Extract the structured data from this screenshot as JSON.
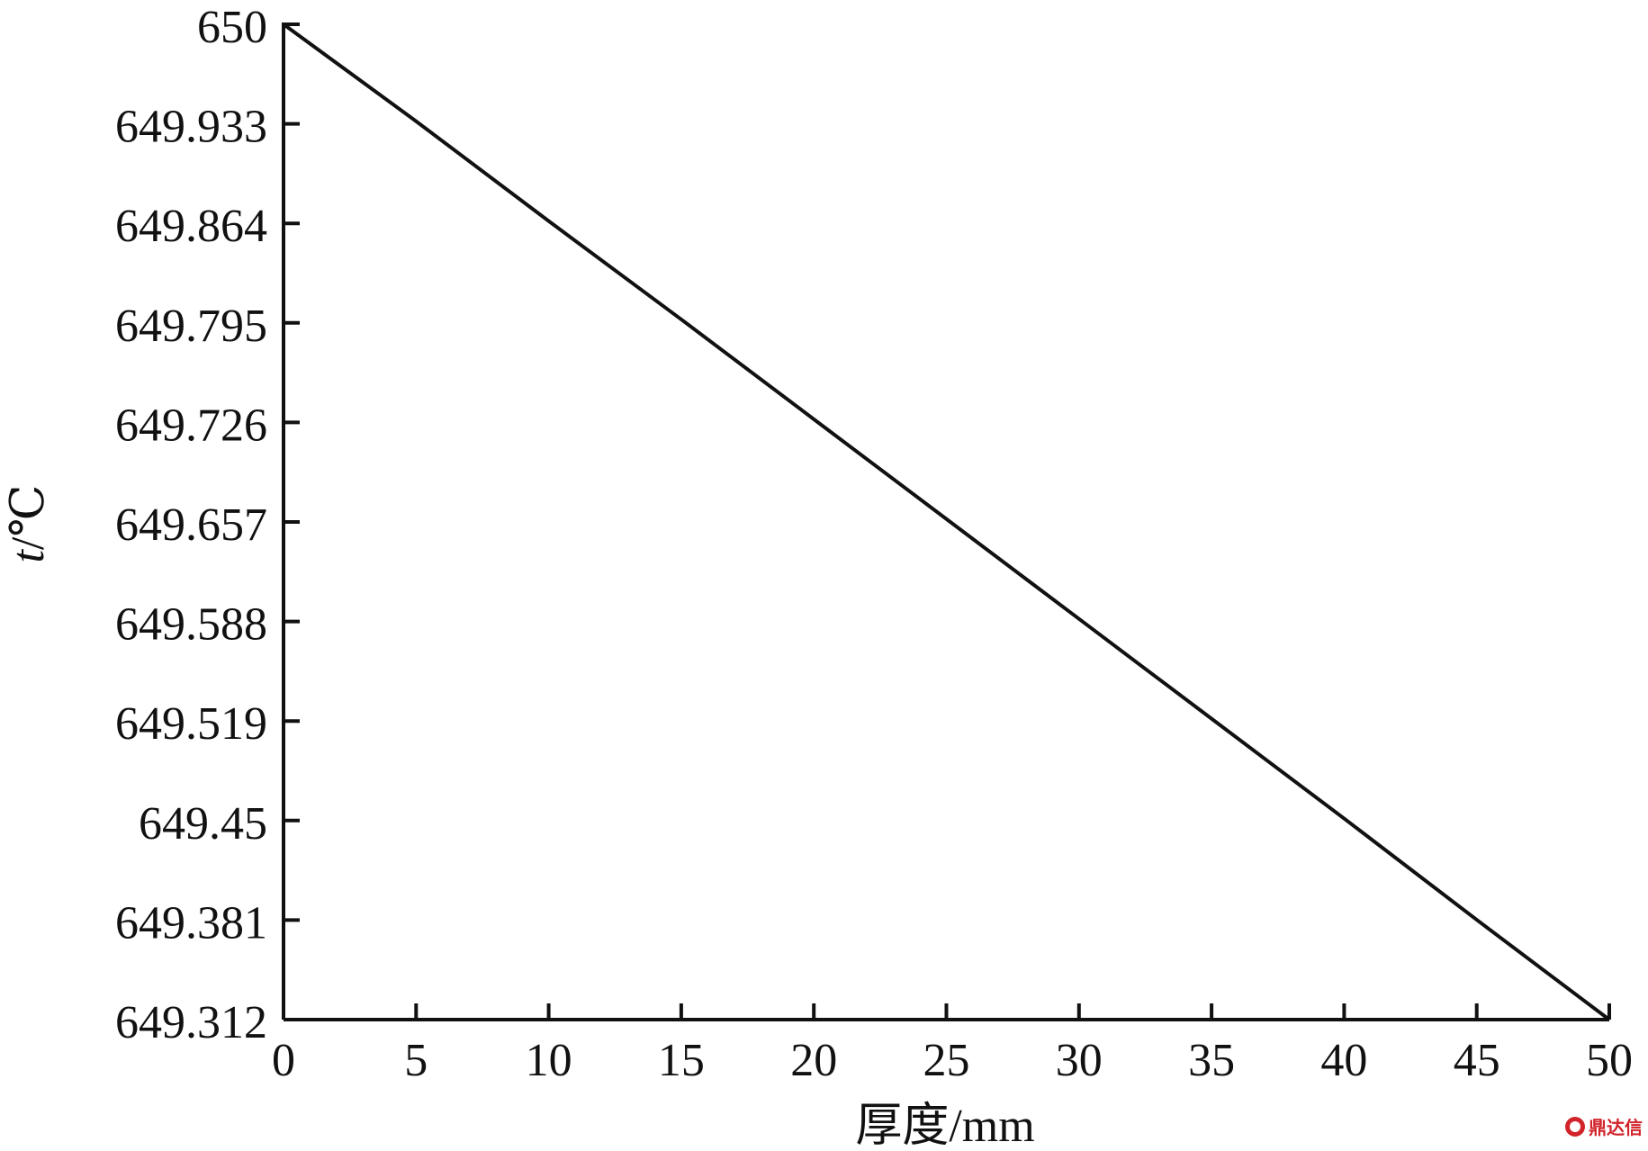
{
  "chart_data": {
    "type": "line",
    "title": "",
    "xlabel": "厚度/mm",
    "ylabel_italic": "t",
    "ylabel_unit": "/℃",
    "xlim": [
      0,
      50
    ],
    "ylim": [
      649.312,
      650
    ],
    "x_ticks": [
      "0",
      "5",
      "10",
      "15",
      "20",
      "25",
      "30",
      "35",
      "40",
      "45",
      "50"
    ],
    "y_ticks": [
      "650",
      "649.933",
      "649.864",
      "649.795",
      "649.726",
      "649.657",
      "649.588",
      "649.519",
      "649.45",
      "649.381",
      "649.312"
    ],
    "grid": false,
    "series": [
      {
        "x": [
          0,
          5,
          10,
          15,
          20,
          25,
          30,
          35,
          40,
          45,
          50
        ],
        "y": [
          650.0,
          649.933,
          649.864,
          649.796,
          649.727,
          649.658,
          649.589,
          649.52,
          649.451,
          649.381,
          649.312
        ],
        "color": "#111111"
      }
    ]
  },
  "watermark": {
    "text": "鼎达信",
    "color": "#d2232a"
  }
}
